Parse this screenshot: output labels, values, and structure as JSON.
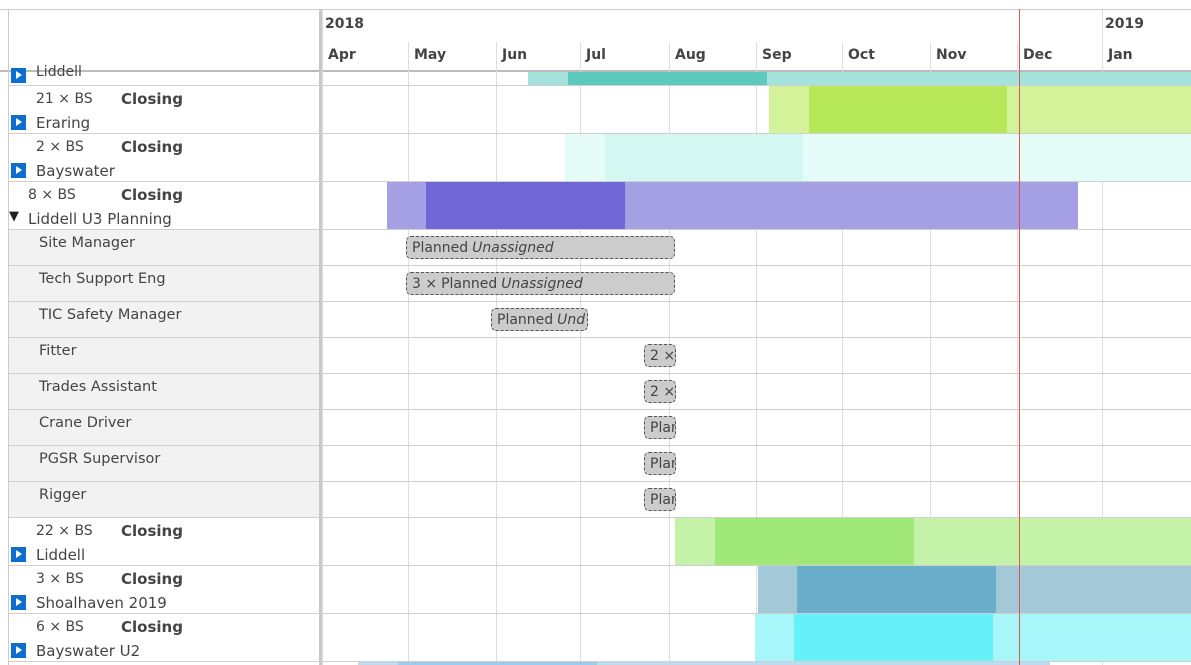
{
  "header": {
    "years": [
      "2018",
      "2019"
    ],
    "months": [
      "Apr",
      "May",
      "Jun",
      "Jul",
      "Aug",
      "Sep",
      "Oct",
      "Nov",
      "Dec",
      "Jan"
    ]
  },
  "top_row": {
    "name": "Liddell"
  },
  "groups": [
    {
      "count": "21 × BS",
      "status": "Closing",
      "name": "Eraring"
    },
    {
      "count": "2 × BS",
      "status": "Closing",
      "name": "Bayswater"
    },
    {
      "count": "8 × BS",
      "status": "Closing",
      "name": "Liddell U3 Planning"
    }
  ],
  "roles": [
    {
      "name": "Site Manager",
      "bar": {
        "status": "Planned",
        "assignee": "Unassigned"
      }
    },
    {
      "name": "Tech Support Eng",
      "bar": {
        "prefix": "3 ×",
        "status": "Planned",
        "assignee": "Unassigned"
      }
    },
    {
      "name": "TIC Safety Manager",
      "bar": {
        "status": "Planned",
        "assignee": "Und"
      }
    },
    {
      "name": "Fitter",
      "bar": {
        "prefix": "2 ×"
      }
    },
    {
      "name": "Trades Assistant",
      "bar": {
        "prefix": "2 ×"
      }
    },
    {
      "name": "Crane Driver",
      "bar": {
        "status": "Plan"
      }
    },
    {
      "name": "PGSR Supervisor",
      "bar": {
        "status": "Plan"
      }
    },
    {
      "name": "Rigger",
      "bar": {
        "status": "Plan"
      }
    }
  ],
  "groups_after": [
    {
      "count": "22 × BS",
      "status": "Closing",
      "name": "Liddell"
    },
    {
      "count": "3 × BS",
      "status": "Closing",
      "name": "Shoalhaven 2019"
    },
    {
      "count": "6 × BS",
      "status": "Closing",
      "name": "Bayswater U2"
    }
  ]
}
